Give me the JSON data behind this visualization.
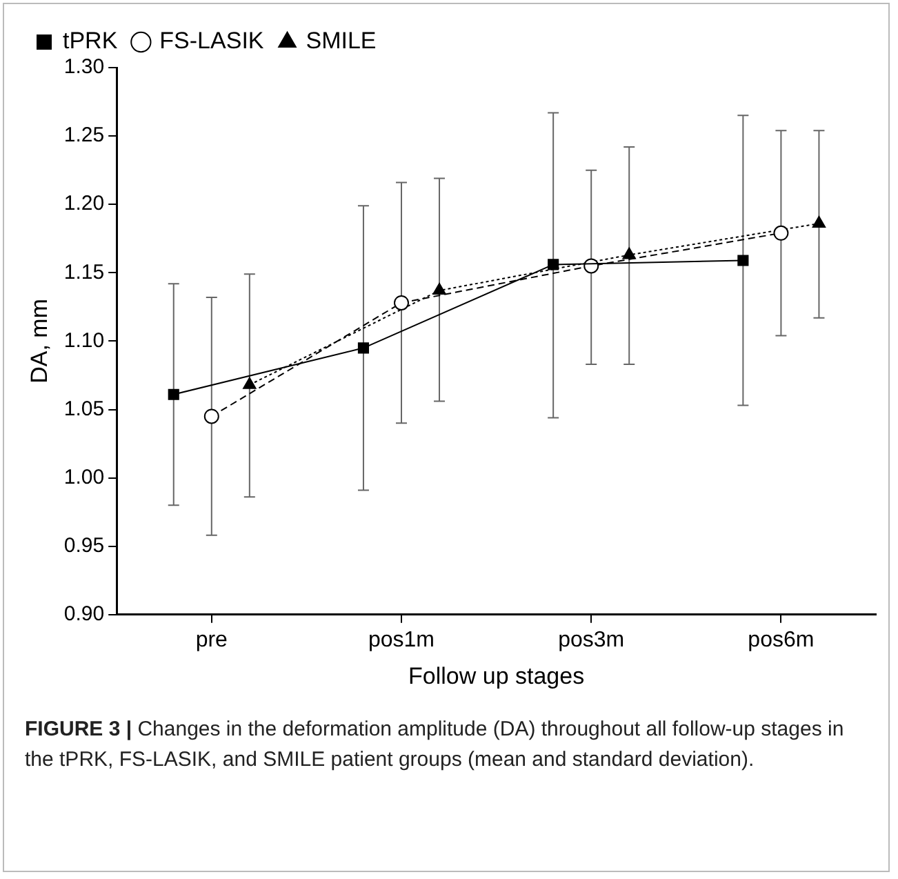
{
  "chart_data": {
    "type": "line",
    "xlabel": "Follow up stages",
    "ylabel": "DA, mm",
    "categories": [
      null,
      null,
      "pre",
      null,
      null,
      null,
      null,
      "pos1m",
      null,
      null,
      null,
      null,
      "pos3m",
      null,
      null,
      null,
      null,
      "pos6m",
      null,
      null
    ],
    "ylim": [
      0.9,
      1.3
    ],
    "yticks": [
      {
        "value": 0.9,
        "label": "0.90"
      },
      {
        "value": 0.95,
        "label": "0.95"
      },
      {
        "value": 1.0,
        "label": "1.00"
      },
      {
        "value": 1.05,
        "label": "1.05"
      },
      {
        "value": 1.1,
        "label": "1.10"
      },
      {
        "value": 1.15,
        "label": "1.15"
      },
      {
        "value": 1.2,
        "label": "1.20"
      },
      {
        "value": 1.25,
        "label": "1.25"
      },
      {
        "value": 1.3,
        "label": "1.30"
      }
    ],
    "grid": false,
    "legend": "top left",
    "series": [
      {
        "name": "tPRK",
        "color": "#000000",
        "marker": "square",
        "line_style": "solid",
        "values": [
          null,
          1.061,
          null,
          null,
          null,
          null,
          1.095,
          null,
          null,
          null,
          null,
          1.156,
          null,
          null,
          null,
          null,
          1.159,
          null,
          null,
          null
        ],
        "errors": [
          null,
          [
            0.98,
            1.142
          ],
          null,
          null,
          null,
          null,
          [
            0.991,
            1.199
          ],
          null,
          null,
          null,
          null,
          [
            1.044,
            1.267
          ],
          null,
          null,
          null,
          null,
          [
            1.053,
            1.265
          ],
          null,
          null,
          null
        ]
      },
      {
        "name": "FS-LASIK",
        "color": "#000000",
        "marker": "circle",
        "line_style": "dashed",
        "values": [
          null,
          null,
          1.045,
          null,
          null,
          null,
          null,
          1.128,
          null,
          null,
          null,
          null,
          1.155,
          null,
          null,
          null,
          null,
          1.179,
          null,
          null
        ],
        "errors": [
          null,
          null,
          [
            0.958,
            1.132
          ],
          null,
          null,
          null,
          null,
          [
            1.04,
            1.216
          ],
          null,
          null,
          null,
          null,
          [
            1.083,
            1.225
          ],
          null,
          null,
          null,
          null,
          [
            1.104,
            1.254
          ],
          null,
          null
        ]
      },
      {
        "name": "SMILE",
        "color": "#000000",
        "marker": "triangle",
        "line_style": "dotted",
        "values": [
          null,
          null,
          null,
          1.068,
          null,
          null,
          null,
          null,
          1.137,
          null,
          null,
          null,
          null,
          1.163,
          null,
          null,
          null,
          null,
          1.186,
          null
        ],
        "errors": [
          null,
          null,
          null,
          [
            0.986,
            1.149
          ],
          null,
          null,
          null,
          null,
          [
            1.056,
            1.219
          ],
          null,
          null,
          null,
          null,
          [
            1.083,
            1.242
          ],
          null,
          null,
          null,
          null,
          [
            1.117,
            1.254
          ],
          null
        ]
      }
    ],
    "annotations": [
      "FIGURE 3 | Changes in the deformation amplitude (DA) throughout all follow-up stages in the tPRK, FS-LASIK, and SMILE patient groups (mean and standard deviation)."
    ]
  }
}
